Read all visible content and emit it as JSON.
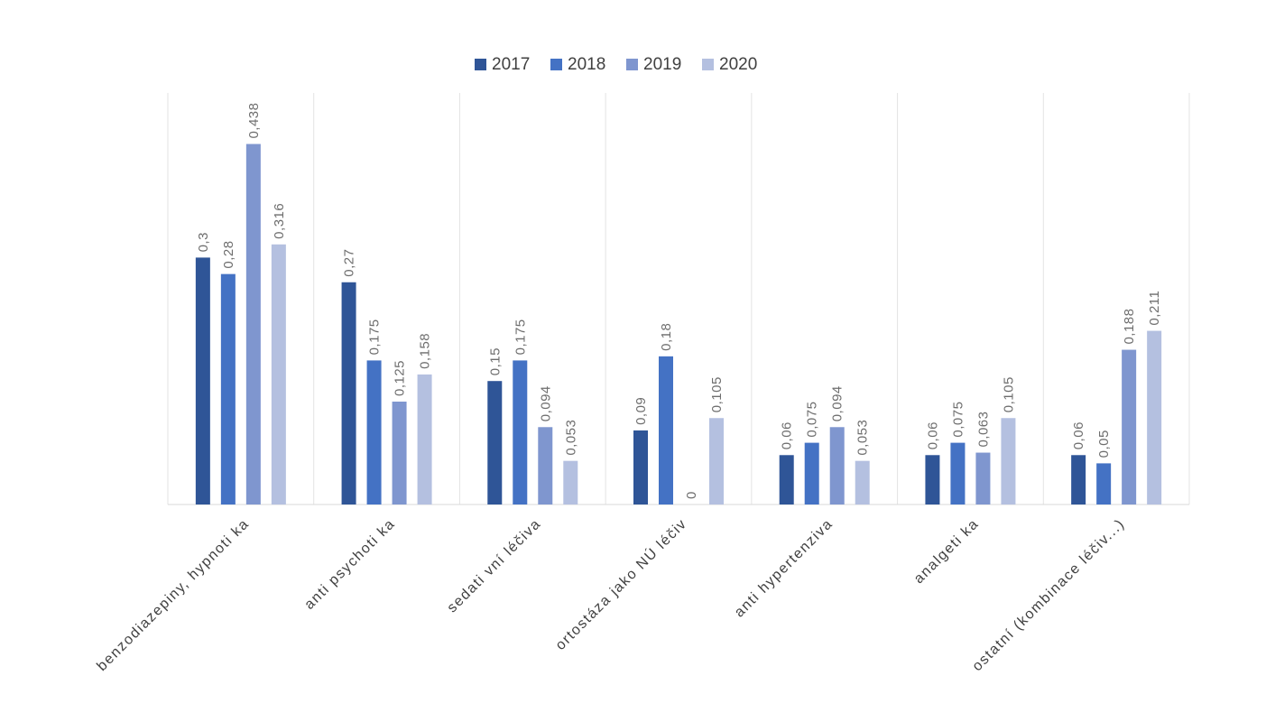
{
  "chart_data": {
    "type": "bar",
    "categories": [
      "benzodiazepiny, hypnoti ka",
      "anti psychoti ka",
      "sedati vní léčiva",
      "ortostáza jako NÚ léčiv",
      "anti hypertenziva",
      "analgeti ka",
      "ostatní (kombinace léčiv...)"
    ],
    "series": [
      {
        "name": "2017",
        "values": [
          0.3,
          0.27,
          0.15,
          0.09,
          0.06,
          0.06,
          0.06
        ],
        "labels": [
          "0,3",
          "0,27",
          "0,15",
          "0,09",
          "0,06",
          "0,06",
          "0,06"
        ]
      },
      {
        "name": "2018",
        "values": [
          0.28,
          0.175,
          0.175,
          0.18,
          0.075,
          0.075,
          0.05
        ],
        "labels": [
          "0,28",
          "0,175",
          "0,175",
          "0,18",
          "0,075",
          "0,075",
          "0,05"
        ]
      },
      {
        "name": "2019",
        "values": [
          0.438,
          0.125,
          0.094,
          0,
          0.094,
          0.063,
          0.188
        ],
        "labels": [
          "0,438",
          "0,125",
          "0,094",
          "0",
          "0,094",
          "0,063",
          "0,188"
        ]
      },
      {
        "name": "2020",
        "values": [
          0.316,
          0.158,
          0.053,
          0.105,
          0.053,
          0.105,
          0.211
        ],
        "labels": [
          "0,316",
          "0,158",
          "0,053",
          "0,105",
          "0,053",
          "0,105",
          "0,211"
        ]
      }
    ],
    "colors": [
      "#2F5597",
      "#4472C4",
      "#7F96CF",
      "#B4C0E0"
    ],
    "ylim": [
      0,
      0.5
    ],
    "grid": "vertical category separators",
    "legend_position": "top"
  }
}
